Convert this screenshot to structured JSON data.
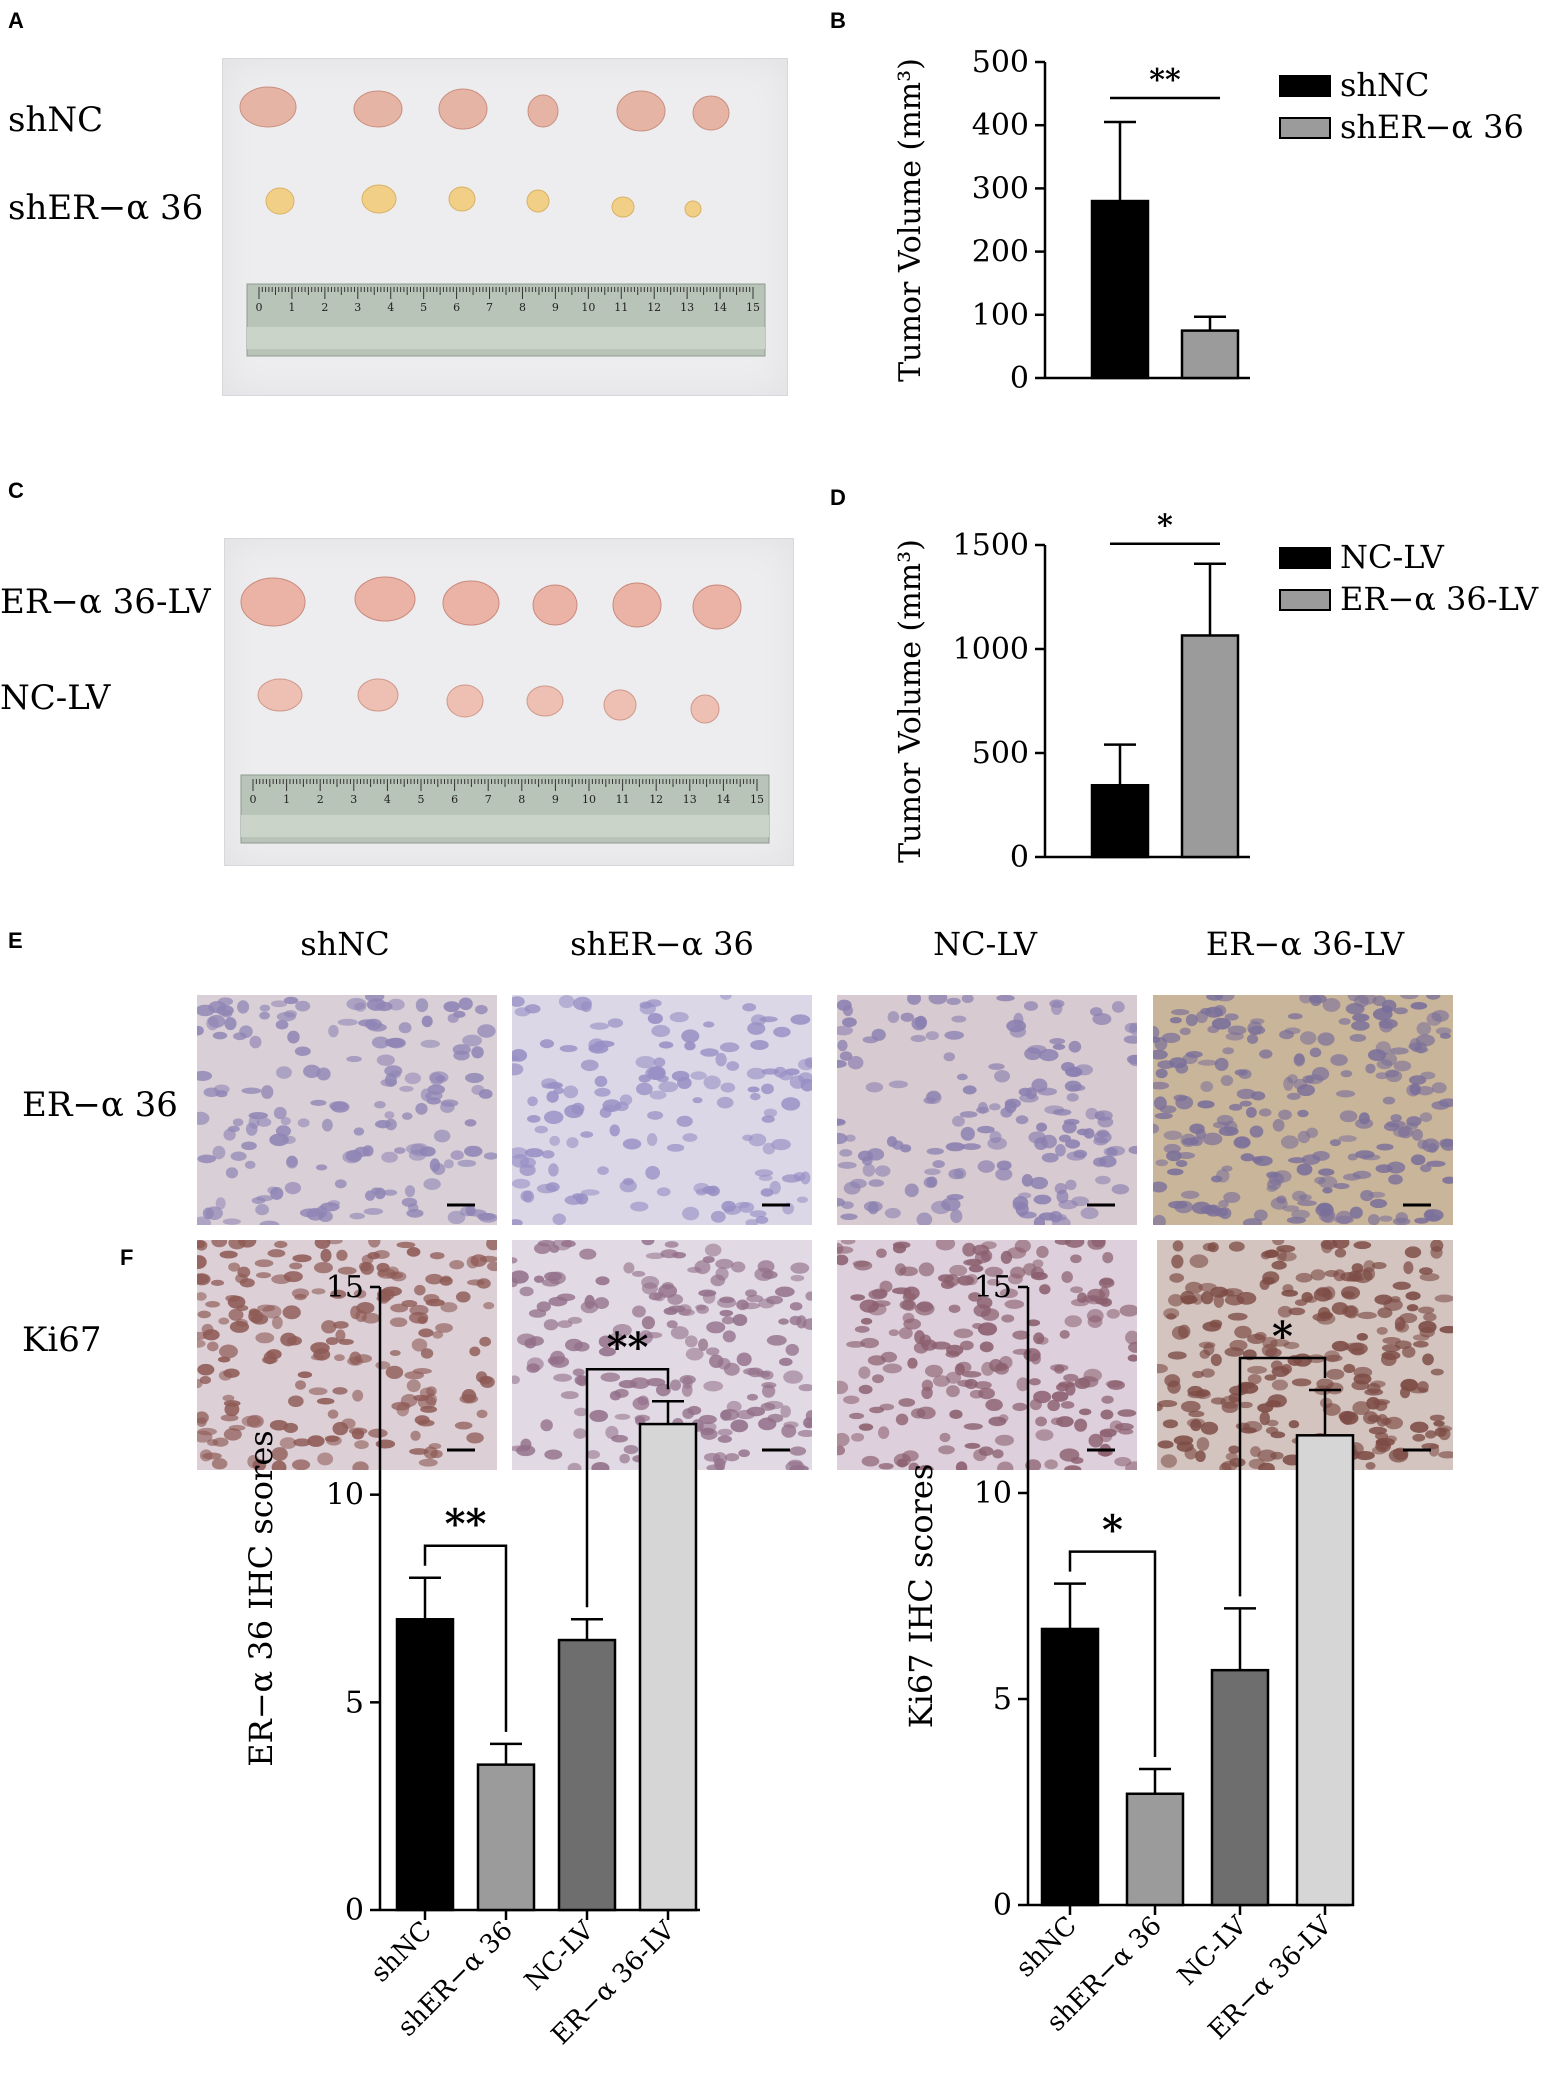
{
  "panels": {
    "a": "A",
    "b": "B",
    "c": "C",
    "d": "D",
    "e": "E",
    "f": "F"
  },
  "photo_a": {
    "row_labels": [
      "shNC",
      "shER−α 36"
    ],
    "ruler_numbers": [
      "0",
      "1",
      "2",
      "3",
      "4",
      "5",
      "6",
      "7",
      "8",
      "9",
      "10",
      "11",
      "12",
      "13",
      "14",
      "15"
    ]
  },
  "photo_c": {
    "row_labels": [
      "ER−α 36-LV",
      "NC-LV"
    ],
    "ruler_numbers": [
      "0",
      "1",
      "2",
      "3",
      "4",
      "5",
      "6",
      "7",
      "8",
      "9",
      "10",
      "11",
      "12",
      "13",
      "14",
      "15"
    ]
  },
  "ihc": {
    "columns": [
      "shNC",
      "shER−α 36",
      "NC-LV",
      "ER−α 36-LV"
    ],
    "rows": [
      "ER−α 36",
      "Ki67"
    ]
  },
  "chart_data": [
    {
      "id": "B",
      "type": "bar",
      "categories": [
        "shNC",
        "shER−α 36"
      ],
      "values": [
        280,
        75
      ],
      "errors": [
        125,
        22
      ],
      "colors": [
        "#000000",
        "#9b9b9b"
      ],
      "ylabel": "Tumor Volume (mm³)",
      "ylim": [
        0,
        500
      ],
      "yticks": [
        0,
        100,
        200,
        300,
        400,
        500
      ],
      "legend": [
        "shNC",
        "shER−α 36"
      ],
      "legend_position": "right",
      "significance": [
        {
          "from": 0,
          "to": 1,
          "label": "**",
          "style": "line"
        }
      ],
      "show_xticklabels": false
    },
    {
      "id": "D",
      "type": "bar",
      "categories": [
        "NC-LV",
        "ER−α 36-LV"
      ],
      "values": [
        345,
        1065
      ],
      "errors": [
        195,
        345
      ],
      "colors": [
        "#000000",
        "#9b9b9b"
      ],
      "ylabel": "Tumor Volume (mm³)",
      "ylim": [
        0,
        1500
      ],
      "yticks": [
        0,
        500,
        1000,
        1500
      ],
      "legend": [
        "NC-LV",
        "ER−α 36-LV"
      ],
      "legend_position": "right",
      "significance": [
        {
          "from": 0,
          "to": 1,
          "label": "*",
          "style": "line"
        }
      ],
      "show_xticklabels": false
    },
    {
      "id": "F1",
      "type": "bar",
      "categories": [
        "shNC",
        "shER−α 36",
        "NC-LV",
        "ER−α 36-LV"
      ],
      "values": [
        7.0,
        3.5,
        6.5,
        11.7
      ],
      "errors": [
        1.0,
        0.5,
        0.5,
        0.55
      ],
      "colors": [
        "#000000",
        "#9b9b9b",
        "#6e6e6e",
        "#d6d6d6"
      ],
      "ylabel": "ER−α 36 IHC scores",
      "ylim": [
        0,
        15
      ],
      "yticks": [
        0,
        5,
        10,
        15
      ],
      "significance": [
        {
          "from": 0,
          "to": 1,
          "label": "**",
          "style": "bracket"
        },
        {
          "from": 2,
          "to": 3,
          "label": "**",
          "style": "bracket"
        }
      ],
      "show_xticklabels": true
    },
    {
      "id": "F2",
      "type": "bar",
      "categories": [
        "shNC",
        "shER−α 36",
        "NC-LV",
        "ER−α 36-LV"
      ],
      "values": [
        6.7,
        2.7,
        5.7,
        11.4
      ],
      "errors": [
        1.1,
        0.6,
        1.5,
        1.1
      ],
      "colors": [
        "#000000",
        "#9b9b9b",
        "#6e6e6e",
        "#d6d6d6"
      ],
      "ylabel": "Ki67 IHC scores",
      "ylim": [
        0,
        15
      ],
      "yticks": [
        0,
        5,
        10,
        15
      ],
      "significance": [
        {
          "from": 0,
          "to": 1,
          "label": "*",
          "style": "bracket"
        },
        {
          "from": 2,
          "to": 3,
          "label": "*",
          "style": "bracket"
        }
      ],
      "show_xticklabels": true
    }
  ]
}
